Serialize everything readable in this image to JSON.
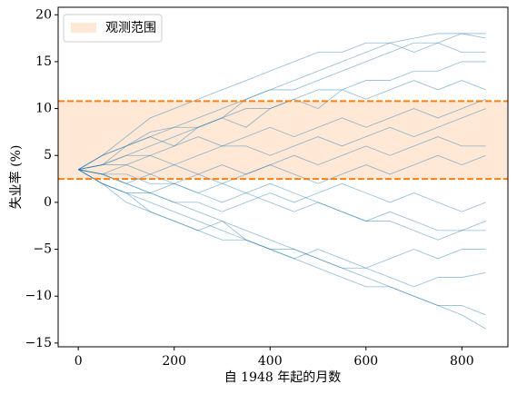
{
  "chart_data": {
    "type": "line",
    "xlabel": "自 1948 年起的月数",
    "ylabel": "失业率 (%)",
    "x": [
      0,
      50,
      100,
      150,
      200,
      250,
      300,
      350,
      400,
      450,
      500,
      550,
      600,
      650,
      700,
      750,
      800,
      850
    ],
    "color": "#1f77b4",
    "series": [
      {
        "values": [
          3.5,
          5,
          6,
          7.5,
          8,
          9,
          10,
          11,
          12,
          13,
          14,
          15,
          16,
          17,
          17.5,
          18,
          18,
          18
        ]
      },
      {
        "values": [
          3.5,
          4,
          5,
          6,
          7,
          8,
          9,
          11,
          12,
          12,
          13,
          14,
          15,
          16,
          17,
          17,
          18,
          17.5
        ]
      },
      {
        "values": [
          3.5,
          3,
          2,
          1,
          0,
          -1,
          -2,
          -3,
          -4,
          -5,
          -6,
          -7,
          -8,
          -9,
          -10,
          -11,
          -12,
          -13.5
        ]
      },
      {
        "values": [
          3.5,
          2,
          1,
          0,
          -1,
          -2,
          -3,
          -4,
          -5,
          -5,
          -6,
          -7,
          -7,
          -8,
          -9,
          -8,
          -8,
          -7.5
        ]
      },
      {
        "values": [
          3.5,
          4,
          4,
          5,
          4,
          5,
          6,
          6,
          5,
          6,
          7,
          6,
          7,
          8,
          7,
          8,
          9,
          10
        ]
      },
      {
        "values": [
          3.5,
          3,
          3,
          2,
          2,
          1,
          0,
          1,
          0,
          -1,
          0,
          -1,
          -2,
          -1,
          -2,
          -3,
          -3,
          -3
        ]
      },
      {
        "values": [
          3.5,
          5,
          6,
          7,
          8,
          8,
          9,
          10,
          10,
          11,
          12,
          12,
          13,
          13,
          14,
          14,
          15,
          15
        ]
      },
      {
        "values": [
          3.5,
          3,
          4,
          3,
          4,
          3,
          4,
          3,
          4,
          3,
          2,
          3,
          4,
          3,
          4,
          5,
          4,
          5
        ]
      },
      {
        "values": [
          3.5,
          2,
          0,
          -1,
          -2,
          -3,
          -4,
          -4,
          -5,
          -6,
          -5,
          -6,
          -7,
          -6,
          -5,
          -6,
          -5,
          -5
        ]
      },
      {
        "values": [
          3.5,
          4,
          6,
          7,
          6,
          8,
          9,
          8,
          10,
          11,
          10,
          12,
          11,
          12,
          13,
          12,
          13,
          12
        ]
      },
      {
        "values": [
          3.5,
          2,
          1,
          1,
          0,
          0,
          -1,
          0,
          1,
          0,
          1,
          2,
          1,
          0,
          1,
          0,
          -1,
          0
        ]
      },
      {
        "values": [
          3.5,
          4,
          5,
          5,
          6,
          7,
          6,
          7,
          8,
          7,
          8,
          9,
          8,
          9,
          10,
          9,
          10,
          11
        ]
      },
      {
        "values": [
          3.5,
          3,
          2,
          3,
          2,
          3,
          2,
          1,
          2,
          1,
          0,
          -1,
          -2,
          -2,
          -3,
          -4,
          -3,
          -2
        ]
      },
      {
        "values": [
          3.5,
          5,
          7,
          9,
          10,
          11,
          12,
          13,
          14,
          15,
          16,
          16,
          17,
          17,
          16,
          17,
          16,
          16
        ]
      },
      {
        "values": [
          3.5,
          3,
          2,
          1,
          2,
          1,
          2,
          3,
          4,
          5,
          4,
          5,
          6,
          5,
          6,
          7,
          6,
          6
        ]
      },
      {
        "values": [
          3.5,
          2,
          1,
          -1,
          -2,
          -3,
          -2,
          -4,
          -5,
          -6,
          -7,
          -8,
          -9,
          -9,
          -10,
          -11,
          -11,
          -12
        ]
      }
    ],
    "observed_range": {
      "name": "观测范围",
      "values": [
        2.5,
        10.8
      ],
      "fill": "#ffe8d6",
      "line_color": "#ff7f0e"
    },
    "legend": "upper left",
    "xlim": [
      -42,
      896
    ],
    "xticks": [
      0,
      200,
      400,
      600,
      800
    ],
    "ylim": [
      -15.4,
      20.8
    ],
    "yticks": [
      {
        "value": -15,
        "label": "−15"
      },
      {
        "value": -10,
        "label": "−10"
      },
      {
        "value": -5,
        "label": "−5"
      },
      0,
      5,
      10,
      15,
      20
    ]
  }
}
